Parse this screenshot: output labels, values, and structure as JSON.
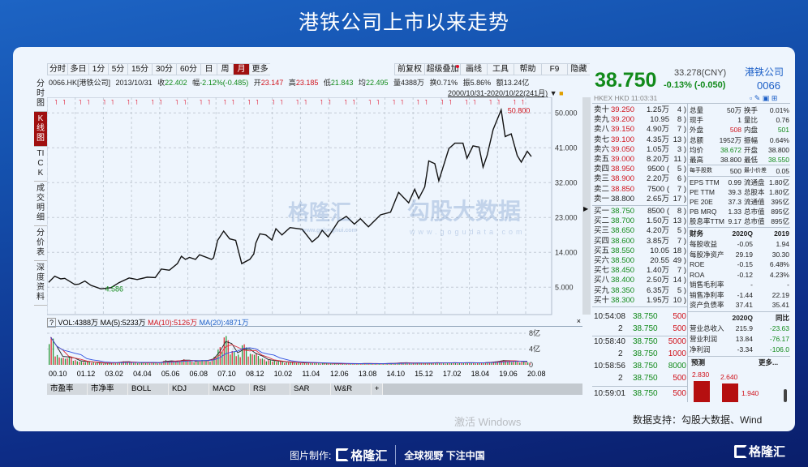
{
  "title": "港铁公司上市以来走势",
  "toolbar": {
    "periods": [
      "分时",
      "多日",
      "1分",
      "5分",
      "15分",
      "30分",
      "60分",
      "日",
      "周",
      "月",
      "更多"
    ],
    "active": "月",
    "tools": [
      "前复权",
      "超级叠加",
      "画线",
      "工具",
      "帮助",
      "F9",
      "隐藏"
    ]
  },
  "side_tabs": [
    "分时图",
    "K线图",
    "TICK",
    "成交明细",
    "分价表",
    "深度资料"
  ],
  "side_active": "K线图",
  "info": {
    "code": "0066.HK[港铁公司]",
    "date": "2013/10/31",
    "close_label": "收",
    "close": "22.402",
    "chg_label": "幅",
    "chg": "-2.12%(-0.485)",
    "open_label": "开",
    "open": "23.147",
    "high_label": "高",
    "high": "23.185",
    "low_label": "低",
    "low": "21.843",
    "avg_label": "均",
    "avg": "22.495",
    "vol_label": "量",
    "vol": "4388万",
    "turn_label": "换",
    "turn": "0.71%",
    "amp_label": "振",
    "amp": "5.86%",
    "amt_label": "额",
    "amt": "13.24亿"
  },
  "range": "2000/10/31-2020/10/22(241月)",
  "volume_header": {
    "help": "?",
    "vol": "VOL:4388万",
    "ma5": "MA(5):5233万",
    "ma10": "MA(10):5126万",
    "ma20": "MA(20):4871万",
    "close": "×"
  },
  "indicator_tabs": [
    "市盈率",
    "市净率",
    "BOLL",
    "KDJ",
    "MACD",
    "RSI",
    "SAR",
    "W&R",
    "+"
  ],
  "watermarks": {
    "gelonghui": "格隆汇",
    "gelonghui_url": "www.gelonghui.com",
    "gogu": "勾股大数据",
    "gogu_url": "www.gogudata.com",
    "windows": "激活 Windows"
  },
  "chart_data": {
    "type": "line",
    "y_ticks": [
      "50.000",
      "41.000",
      "32.000",
      "23.000",
      "14.000",
      "5.000"
    ],
    "ylim": [
      0,
      55
    ],
    "x_ticks": [
      "00.10",
      "01.12",
      "03.02",
      "04.04",
      "05.06",
      "06.08",
      "07.10",
      "08.12",
      "10.02",
      "11.04",
      "12.06",
      "13.08",
      "14.10",
      "15.12",
      "17.02",
      "18.04",
      "19.06",
      "20.08"
    ],
    "annotations": {
      "max": "50.800",
      "min": "4.586"
    },
    "price": [
      [
        "2000-10",
        6.26
      ],
      [
        "2001-01",
        7.85
      ],
      [
        "2001-04",
        7.16
      ],
      [
        "2001-06",
        7.3
      ],
      [
        "2001-11",
        5.7
      ],
      [
        "2002-01",
        5.8
      ],
      [
        "2002-04",
        6.6
      ],
      [
        "2002-07",
        5.5
      ],
      [
        "2002-12",
        4.59
      ],
      [
        "2003-05",
        4.9
      ],
      [
        "2003-09",
        6.2
      ],
      [
        "2004-02",
        7.4
      ],
      [
        "2004-06",
        7.0
      ],
      [
        "2004-11",
        7.6
      ],
      [
        "2005-03",
        7.5
      ],
      [
        "2005-06",
        9.7
      ],
      [
        "2005-10",
        9.4
      ],
      [
        "2006-02",
        11.1
      ],
      [
        "2006-04",
        13.0
      ],
      [
        "2006-06",
        12.2
      ],
      [
        "2006-08",
        12.7
      ],
      [
        "2006-11",
        12.2
      ],
      [
        "2007-01",
        13.4
      ],
      [
        "2007-07",
        12.2
      ],
      [
        "2007-08",
        12.6
      ],
      [
        "2007-10",
        17.1
      ],
      [
        "2008-01",
        19.5
      ],
      [
        "2008-04",
        17.5
      ],
      [
        "2008-07",
        17.1
      ],
      [
        "2008-10",
        11.1
      ],
      [
        "2009-02",
        12.2
      ],
      [
        "2009-04",
        13.6
      ],
      [
        "2009-05",
        16.4
      ],
      [
        "2009-07",
        18.8
      ],
      [
        "2009-10",
        18.5
      ],
      [
        "2010-01",
        17.2
      ],
      [
        "2010-03",
        20.1
      ],
      [
        "2010-06",
        18.5
      ],
      [
        "2010-10",
        20.4
      ],
      [
        "2011-04",
        20.0
      ],
      [
        "2011-09",
        16.7
      ],
      [
        "2011-12",
        18.0
      ],
      [
        "2012-02",
        19.7
      ],
      [
        "2012-05",
        18.0
      ],
      [
        "2012-10",
        22.0
      ],
      [
        "2013-02",
        23.3
      ],
      [
        "2013-06",
        21.3
      ],
      [
        "2013-09",
        22.7
      ],
      [
        "2014-01",
        20.6
      ],
      [
        "2014-07",
        23.7
      ],
      [
        "2014-12",
        24.4
      ],
      [
        "2015-04",
        29.5
      ],
      [
        "2015-09",
        26.8
      ],
      [
        "2015-12",
        30.3
      ],
      [
        "2016-02",
        27.9
      ],
      [
        "2016-05",
        30.9
      ],
      [
        "2016-07",
        37.6
      ],
      [
        "2016-10",
        36.9
      ],
      [
        "2016-12",
        32.5
      ],
      [
        "2017-05",
        40.8
      ],
      [
        "2017-08",
        42.2
      ],
      [
        "2017-12",
        42.2
      ],
      [
        "2018-02",
        38.3
      ],
      [
        "2018-05",
        41.5
      ],
      [
        "2018-08",
        41.2
      ],
      [
        "2018-10",
        36.0
      ],
      [
        "2018-12",
        39.0
      ],
      [
        "2019-03",
        45.7
      ],
      [
        "2019-07",
        50.8
      ],
      [
        "2019-09",
        43.9
      ],
      [
        "2019-12",
        44.6
      ],
      [
        "2020-03",
        39.0
      ],
      [
        "2020-05",
        37.3
      ],
      [
        "2020-08",
        40.1
      ],
      [
        "2020-10",
        38.75
      ]
    ],
    "volume_ticks": [
      "8亿",
      "4亿",
      "0"
    ],
    "volume_ylim": [
      0,
      8
    ],
    "volume_start": "2000-10",
    "volume_step_months": 3,
    "volume": [
      7.0,
      2.5,
      1.8,
      2.2,
      1.2,
      0.8,
      0.9,
      0.6,
      0.5,
      0.4,
      0.5,
      0.6,
      0.9,
      0.7,
      0.5,
      0.6,
      0.5,
      0.6,
      0.5,
      1.2,
      0.8,
      1.0,
      1.4,
      1.0,
      0.9,
      1.2,
      1.0,
      2.0,
      4.5,
      7.3,
      3.5,
      2.6,
      5.2,
      2.8,
      3.0,
      1.6,
      1.2,
      1.0,
      0.9,
      0.6,
      0.7,
      0.5,
      0.5,
      0.6,
      0.5,
      0.4,
      0.4,
      0.3,
      0.3,
      0.3,
      0.3,
      0.3,
      0.4,
      0.3,
      0.3,
      0.3,
      0.4,
      0.4,
      0.6,
      0.5,
      0.4,
      0.5,
      0.4,
      0.5,
      0.6,
      0.4,
      0.6,
      0.5,
      0.5,
      0.6,
      0.5,
      0.5,
      0.6,
      0.7,
      0.9,
      1.2,
      0.9,
      1.0,
      0.8,
      0.6
    ],
    "colors": {
      "price": "#111111",
      "up": "#e0303a",
      "down": "#2a9a3a",
      "ma5": "#222222",
      "ma10": "#e0303a",
      "ma20": "#3050e0"
    }
  },
  "quote": {
    "price": "38.750",
    "cny": "33.278(CNY)",
    "change": "-0.13% (-0.050)",
    "name": "港铁公司",
    "code": "0066",
    "meta": "HKEX  HKD  11:03:31"
  },
  "asks": [
    [
      "卖十",
      "39.250",
      "1.25万",
      "4 )"
    ],
    [
      "卖九",
      "39.200",
      "10.95",
      "8 )"
    ],
    [
      "卖八",
      "39.150",
      "4.90万",
      "7 )"
    ],
    [
      "卖七",
      "39.100",
      "4.35万",
      "13 )"
    ],
    [
      "卖六",
      "39.050",
      "1.05万",
      "3 )"
    ],
    [
      "卖五",
      "39.000",
      "8.20万",
      "11 )"
    ],
    [
      "卖四",
      "38.950",
      "9500 (",
      "5 )"
    ],
    [
      "卖三",
      "38.900",
      "2.20万",
      "6 )"
    ],
    [
      "卖二",
      "38.850",
      "7500 (",
      "7 )"
    ],
    [
      "卖一",
      "38.800",
      "2.65万",
      "17 )"
    ]
  ],
  "bids": [
    [
      "买一",
      "38.750",
      "8500 (",
      "8 )"
    ],
    [
      "买二",
      "38.700",
      "1.50万",
      "13 )"
    ],
    [
      "买三",
      "38.650",
      "4.20万",
      "5 )"
    ],
    [
      "买四",
      "38.600",
      "3.85万",
      "7 )"
    ],
    [
      "买五",
      "38.550",
      "10.05",
      "18 )"
    ],
    [
      "买六",
      "38.500",
      "20.55",
      "49 )"
    ],
    [
      "买七",
      "38.450",
      "1.40万",
      "7 )"
    ],
    [
      "买八",
      "38.400",
      "2.50万",
      "14 )"
    ],
    [
      "买九",
      "38.350",
      "6.35万",
      "5 )"
    ],
    [
      "买十",
      "38.300",
      "1.95万",
      "10 )"
    ]
  ],
  "stats": [
    [
      "总量",
      "50万",
      "换手",
      "0.01%"
    ],
    [
      "现手",
      "1",
      "量比",
      "0.76"
    ],
    [
      "外盘",
      "508",
      "内盘",
      "501"
    ],
    [
      "总额",
      "1952万",
      "振幅",
      "0.64%"
    ],
    [
      "均价",
      "38.672",
      "开盘",
      "38.800"
    ],
    [
      "最高",
      "38.800",
      "最低",
      "38.550"
    ]
  ],
  "lot": [
    "每手股数",
    "500",
    "最小价差",
    "0.05"
  ],
  "valuation": [
    [
      "EPS TTM",
      "0.99",
      "流通盘",
      "1.80亿"
    ],
    [
      "PE TTM",
      "39.3",
      "总股本",
      "1.80亿"
    ],
    [
      "PE 20E",
      "37.3",
      "流通值",
      "395亿"
    ],
    [
      "PB MRQ",
      "1.33",
      "总市值",
      "895亿"
    ],
    [
      "股息率TTM",
      "9.17",
      "总市值",
      "895亿"
    ]
  ],
  "finance": {
    "header": [
      "财务",
      "2020Q",
      "2019"
    ],
    "rows": [
      [
        "每股收益",
        "-0.05",
        "1.94"
      ],
      [
        "每股净资产",
        "29.19",
        "30.30"
      ],
      [
        "ROE",
        "-0.15",
        "6.48%"
      ],
      [
        "ROA",
        "-0.12",
        "4.23%"
      ],
      [
        "销售毛利率",
        "-",
        "-"
      ],
      [
        "销售净利率",
        "-1.44",
        "22.19"
      ],
      [
        "资产负债率",
        "37.41",
        "35.41"
      ]
    ]
  },
  "growth": {
    "header": [
      "",
      "2020Q",
      "同比"
    ],
    "rows": [
      [
        "营业总收入",
        "215.9",
        "-23.63"
      ],
      [
        "营业利润",
        "13.84",
        "-76.17"
      ],
      [
        "净利润",
        "-3.34",
        "-106.0"
      ]
    ]
  },
  "forecast": {
    "label": "预测",
    "more": "更多...",
    "values": [
      "2.830",
      "2.640",
      "1.940"
    ]
  },
  "ticks": [
    [
      "10:54:08",
      "38.750",
      "500"
    ],
    [
      "2",
      "38.750",
      "500"
    ],
    [
      "10:58:40",
      "38.750",
      "5000"
    ],
    [
      "2",
      "38.750",
      "1000"
    ],
    [
      "10:58:56",
      "38.750",
      "8000"
    ],
    [
      "2",
      "38.750",
      "500"
    ],
    [
      "10:59:01",
      "38.750",
      "500"
    ]
  ],
  "footer": {
    "source": "数据支持：勾股大数据、Wind",
    "made_by": "图片制作:",
    "brand": "格隆汇",
    "slogan": "全球视野 下注中国"
  }
}
